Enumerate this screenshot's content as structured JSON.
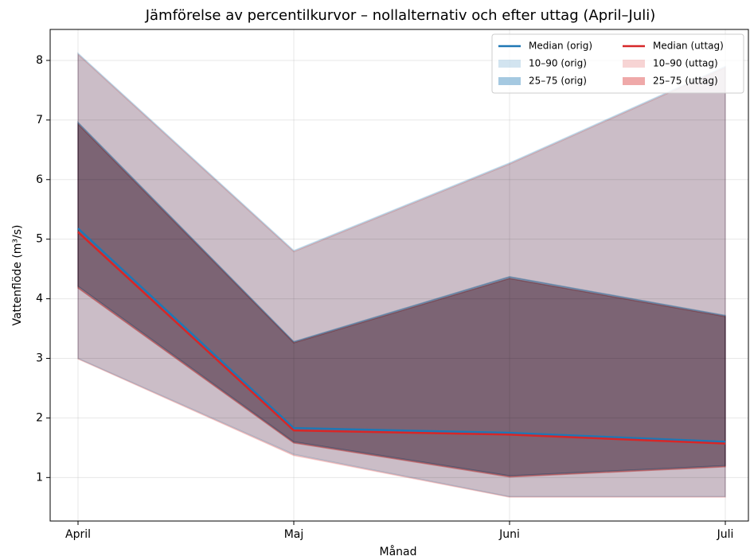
{
  "chart_data": {
    "type": "band-line",
    "title": "Jämförelse av percentilkurvor – nollalternativ och efter uttag (April–Juli)",
    "xlabel": "Månad",
    "ylabel": "Vattenflöde (m³/s)",
    "categories": [
      "April",
      "Maj",
      "Juni",
      "Juli"
    ],
    "ylim": [
      0.27,
      8.52
    ],
    "yticks": [
      1,
      2,
      3,
      4,
      5,
      6,
      7,
      8
    ],
    "grid": true,
    "legend": "upper right",
    "legend_columns": 2,
    "series": [
      {
        "name": "Median (orig)",
        "kind": "line",
        "color": "#1f77b4",
        "values": [
          5.18,
          1.83,
          1.75,
          1.6
        ]
      },
      {
        "name": "10–90 (orig)",
        "kind": "band",
        "color": "#1f77b4",
        "opacity": 0.2,
        "low": [
          3.0,
          1.39,
          0.68,
          0.68
        ],
        "high": [
          8.12,
          4.81,
          6.28,
          7.9
        ]
      },
      {
        "name": "25–75 (orig)",
        "kind": "band",
        "color": "#1f77b4",
        "opacity": 0.4,
        "low": [
          4.21,
          1.6,
          1.03,
          1.2
        ],
        "high": [
          6.96,
          3.28,
          4.37,
          3.72
        ]
      },
      {
        "name": "Median (uttag)",
        "kind": "line",
        "color": "#d62728",
        "values": [
          5.12,
          1.79,
          1.72,
          1.57
        ]
      },
      {
        "name": "10–90 (uttag)",
        "kind": "band",
        "color": "#d62728",
        "opacity": 0.2,
        "low": [
          2.99,
          1.37,
          0.67,
          0.67
        ],
        "high": [
          8.1,
          4.79,
          6.26,
          7.88
        ]
      },
      {
        "name": "25–75 (uttag)",
        "kind": "band",
        "color": "#d62728",
        "opacity": 0.4,
        "low": [
          4.18,
          1.58,
          1.01,
          1.18
        ],
        "high": [
          6.93,
          3.26,
          4.34,
          3.7
        ]
      }
    ]
  }
}
